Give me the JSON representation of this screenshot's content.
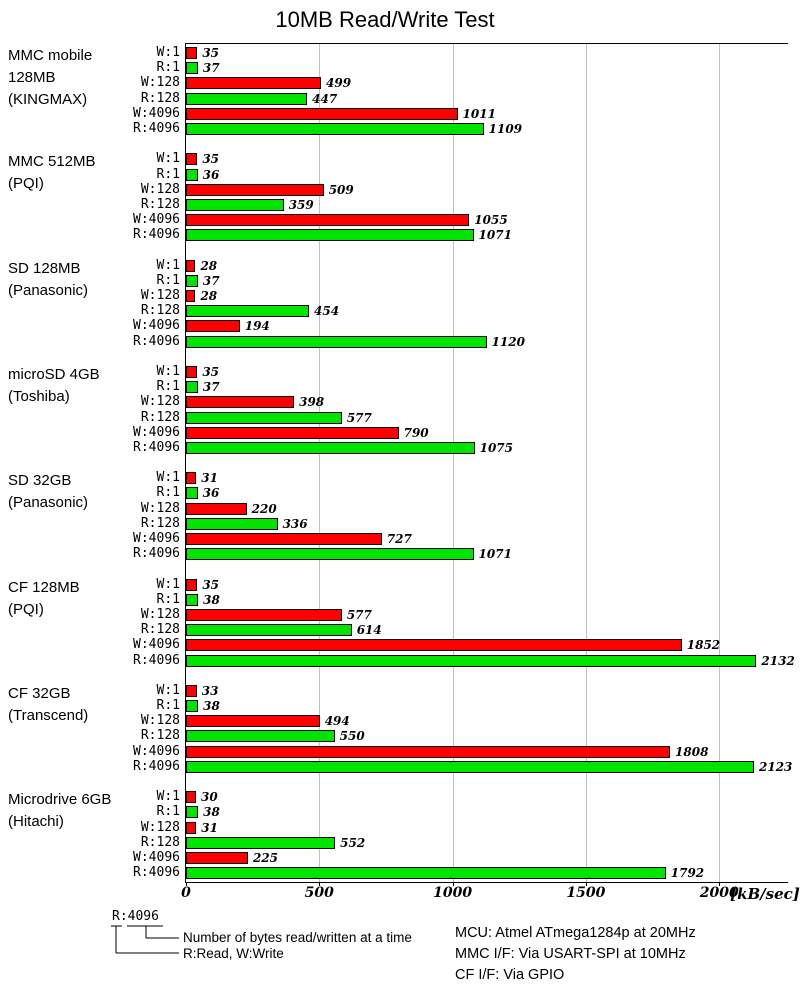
{
  "title": "10MB Read/Write Test",
  "axis_unit": "[kB/sec]",
  "colors": {
    "write_bar": "#ff0000",
    "read_bar": "#00e400",
    "gridline": "#c0c0c0"
  },
  "legend": {
    "example": "R:4096",
    "note_bytes": "Number of bytes read/written at a time",
    "note_rw": "R:Read, W:Write"
  },
  "footer": {
    "line1": "MCU: Atmel ATmega1284p at 20MHz",
    "line2": "MMC I/F: Via USART-SPI at 10MHz",
    "line3": "CF I/F: Via GPIO"
  },
  "chart_data": {
    "type": "bar",
    "orientation": "horizontal",
    "title": "10MB Read/Write Test",
    "xlabel": "[kB/sec]",
    "xlim": [
      0,
      2258
    ],
    "ticks": [
      0,
      500,
      1000,
      1500,
      2000
    ],
    "grid": true,
    "legend_position": "bottom-left",
    "row_labels": [
      "W:1",
      "R:1",
      "W:128",
      "R:128",
      "W:4096",
      "R:4096"
    ],
    "series_colors": {
      "write": "#ff0000",
      "read": "#00e400"
    },
    "groups": [
      {
        "label_lines": [
          "MMC mobile",
          "128MB",
          "(KINGMAX)"
        ],
        "values": [
          35,
          37,
          499,
          447,
          1011,
          1109
        ]
      },
      {
        "label_lines": [
          "MMC 512MB",
          "(PQI)"
        ],
        "values": [
          35,
          36,
          509,
          359,
          1055,
          1071
        ]
      },
      {
        "label_lines": [
          "SD 128MB",
          "(Panasonic)"
        ],
        "values": [
          28,
          37,
          28,
          454,
          194,
          1120
        ]
      },
      {
        "label_lines": [
          "microSD 4GB",
          "(Toshiba)"
        ],
        "values": [
          35,
          37,
          398,
          577,
          790,
          1075
        ]
      },
      {
        "label_lines": [
          "SD 32GB",
          "(Panasonic)"
        ],
        "values": [
          31,
          36,
          220,
          336,
          727,
          1071
        ]
      },
      {
        "label_lines": [
          "CF 128MB",
          "(PQI)"
        ],
        "values": [
          35,
          38,
          577,
          614,
          1852,
          2132
        ]
      },
      {
        "label_lines": [
          "CF 32GB",
          "(Transcend)"
        ],
        "values": [
          33,
          38,
          494,
          550,
          1808,
          2123
        ]
      },
      {
        "label_lines": [
          "Microdrive 6GB",
          "(Hitachi)"
        ],
        "values": [
          30,
          38,
          31,
          552,
          225,
          1792
        ]
      }
    ]
  }
}
